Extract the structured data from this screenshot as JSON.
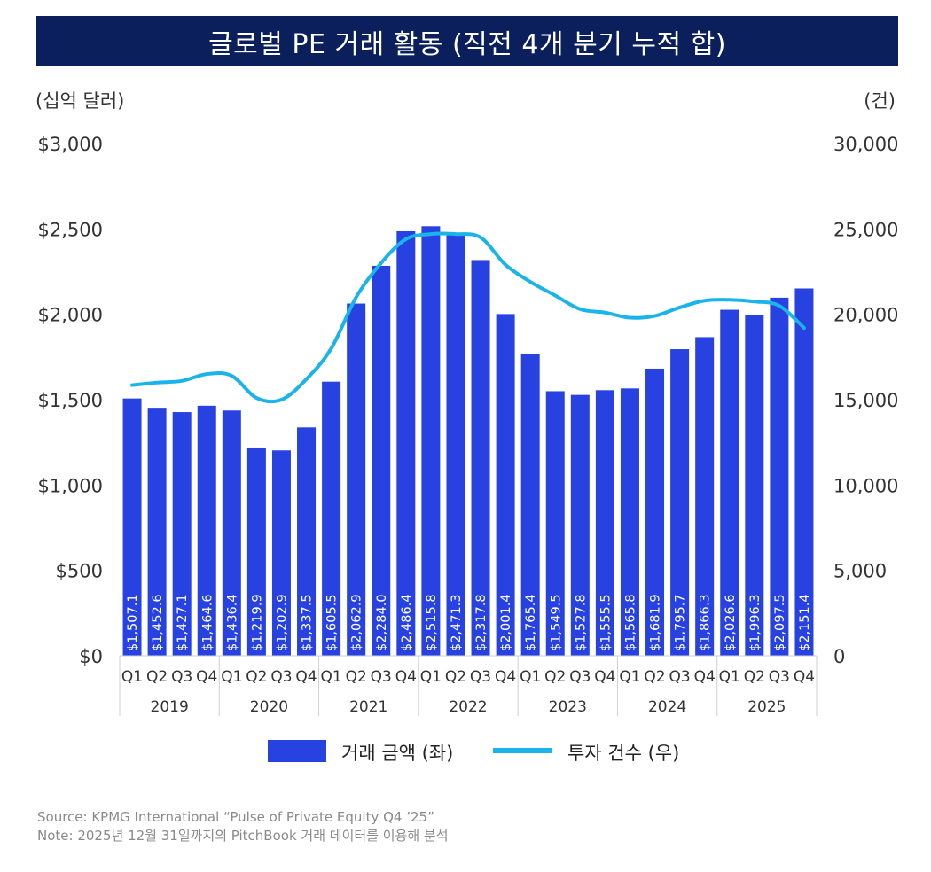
{
  "title": "글로벌 PE 거래 활동 (직전 4개 분기 누적 합)",
  "left_unit": "(십억 달러)",
  "right_unit": "(건)",
  "source": "Source: KPMG International “Pulse of Private Equity Q4 ’25”",
  "note": "Note: 2025년 12월 31일까지의 PitchBook 거래 데이터를 이용해 분석",
  "colors": {
    "bar": "#2742e0",
    "line": "#1ab4ea",
    "title_bg": "#0a1f5c"
  },
  "chart_data": {
    "type": "bar",
    "categories": [
      "Q1",
      "Q2",
      "Q3",
      "Q4",
      "Q1",
      "Q2",
      "Q3",
      "Q4",
      "Q1",
      "Q2",
      "Q3",
      "Q4",
      "Q1",
      "Q2",
      "Q3",
      "Q4",
      "Q1",
      "Q2",
      "Q3",
      "Q4",
      "Q1",
      "Q2",
      "Q3",
      "Q4",
      "Q1",
      "Q2",
      "Q3",
      "Q4"
    ],
    "years": [
      "2019",
      "2020",
      "2021",
      "2022",
      "2023",
      "2024",
      "2025"
    ],
    "y_left_ticks": [
      "$0",
      "$500",
      "$1,000",
      "$1,500",
      "$2,000",
      "$2,500",
      "$3,000"
    ],
    "y_right_ticks": [
      "0",
      "5,000",
      "10,000",
      "15,000",
      "20,000",
      "25,000",
      "30,000"
    ],
    "ylim_left": [
      0,
      3000
    ],
    "ylim_right": [
      0,
      30000
    ],
    "series": [
      {
        "name": "거래 금액 (좌)",
        "type": "bar",
        "axis": "left",
        "values": [
          1507.1,
          1452.6,
          1427.1,
          1464.6,
          1436.4,
          1219.9,
          1202.9,
          1337.5,
          1605.5,
          2062.9,
          2284.0,
          2486.4,
          2515.8,
          2471.3,
          2317.8,
          2001.4,
          1765.4,
          1549.5,
          1527.8,
          1555.5,
          1565.8,
          1681.9,
          1795.7,
          1866.3,
          2026.6,
          1996.3,
          2097.5,
          2151.4
        ],
        "labels": [
          "$1,507.1",
          "$1,452.6",
          "$1,427.1",
          "$1,464.6",
          "$1,436.4",
          "$1,219.9",
          "$1,202.9",
          "$1,337.5",
          "$1,605.5",
          "$2,062.9",
          "$2,284.0",
          "$2,486.4",
          "$2,515.8",
          "$2,471.3",
          "$2,317.8",
          "$2,001.4",
          "$1,765.4",
          "$1,549.5",
          "$1,527.8",
          "$1,555.5",
          "$1,565.8",
          "$1,681.9",
          "$1,795.7",
          "$1,866.3",
          "$2,026.6",
          "$1,996.3",
          "$2,097.5",
          "$2,151.4"
        ]
      },
      {
        "name": "투자 건수 (우)",
        "type": "line",
        "axis": "right",
        "values": [
          15850,
          16000,
          16100,
          16500,
          16400,
          15100,
          15000,
          16200,
          18000,
          21000,
          23000,
          24400,
          24700,
          24700,
          24500,
          22900,
          21900,
          21100,
          20300,
          20100,
          19800,
          19900,
          20400,
          20800,
          20850,
          20750,
          20500,
          19200
        ]
      }
    ],
    "grid": false,
    "legend_position": "bottom"
  }
}
